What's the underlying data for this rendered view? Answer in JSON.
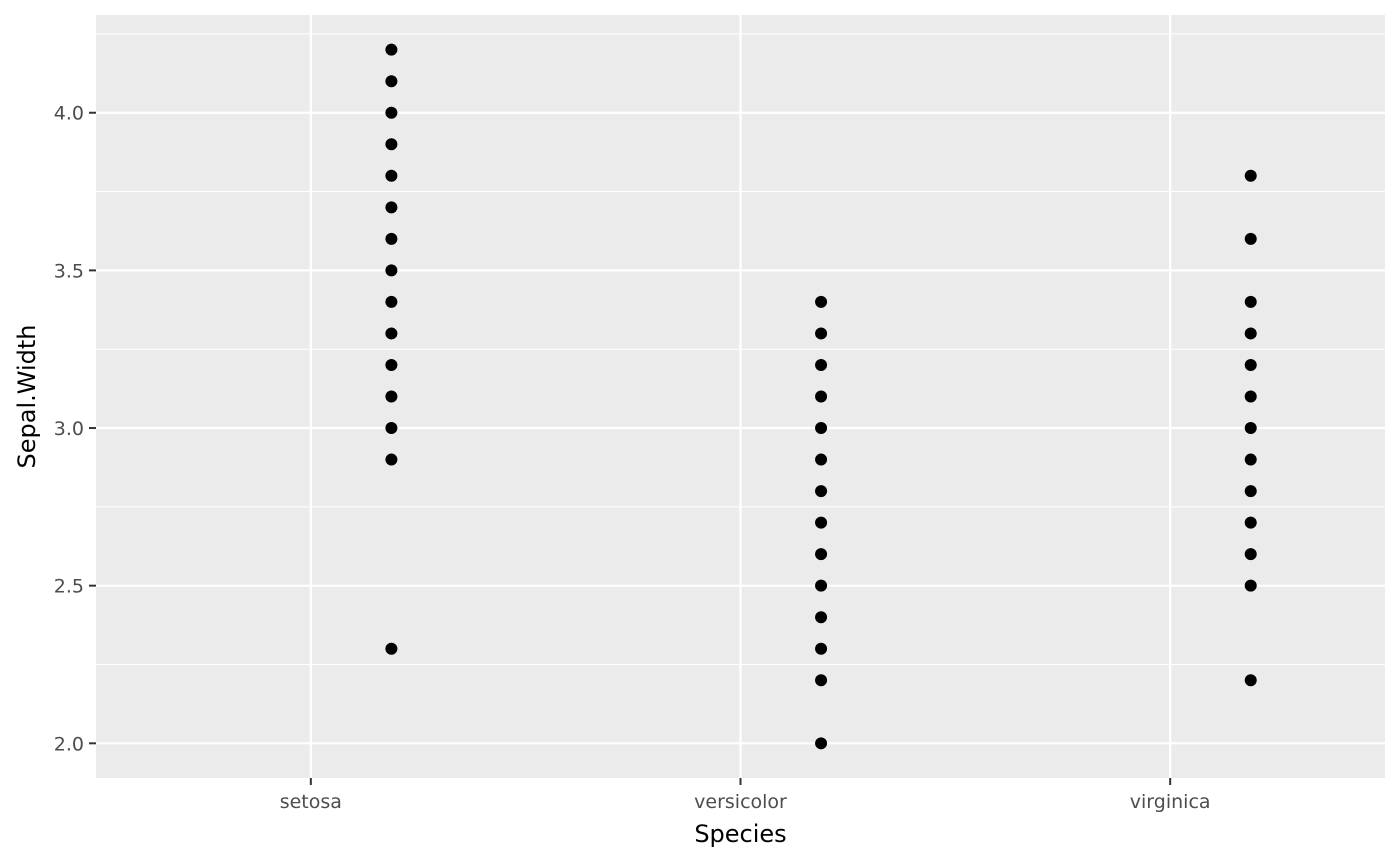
{
  "chart_data": {
    "type": "scatter",
    "title": "",
    "xlabel": "Species",
    "ylabel": "Sepal.Width",
    "categories": [
      "setosa",
      "versicolor",
      "virginica"
    ],
    "ylim": [
      1.89,
      4.31
    ],
    "y_ticks": [
      2.0,
      2.5,
      3.0,
      3.5,
      4.0
    ],
    "y_tick_labels": [
      "2.0",
      "2.5",
      "3.0",
      "3.5",
      "4.0"
    ],
    "grid": true,
    "legend": "none",
    "colors": {
      "panel_background": "#ebebeb",
      "grid_line": "#ffffff",
      "point": "#000000",
      "tick_text": "#4d4d4d",
      "title_text": "#000000",
      "tick_mark": "#333333"
    },
    "points": [
      {
        "category": "setosa",
        "y": 4.2
      },
      {
        "category": "setosa",
        "y": 4.1
      },
      {
        "category": "setosa",
        "y": 4.0
      },
      {
        "category": "setosa",
        "y": 3.9
      },
      {
        "category": "setosa",
        "y": 3.8
      },
      {
        "category": "setosa",
        "y": 3.7
      },
      {
        "category": "setosa",
        "y": 3.6
      },
      {
        "category": "setosa",
        "y": 3.5
      },
      {
        "category": "setosa",
        "y": 3.4
      },
      {
        "category": "setosa",
        "y": 3.3
      },
      {
        "category": "setosa",
        "y": 3.2
      },
      {
        "category": "setosa",
        "y": 3.1
      },
      {
        "category": "setosa",
        "y": 3.0
      },
      {
        "category": "setosa",
        "y": 2.9
      },
      {
        "category": "setosa",
        "y": 2.3
      },
      {
        "category": "versicolor",
        "y": 3.4
      },
      {
        "category": "versicolor",
        "y": 3.3
      },
      {
        "category": "versicolor",
        "y": 3.2
      },
      {
        "category": "versicolor",
        "y": 3.1
      },
      {
        "category": "versicolor",
        "y": 3.0
      },
      {
        "category": "versicolor",
        "y": 2.9
      },
      {
        "category": "versicolor",
        "y": 2.8
      },
      {
        "category": "versicolor",
        "y": 2.7
      },
      {
        "category": "versicolor",
        "y": 2.6
      },
      {
        "category": "versicolor",
        "y": 2.5
      },
      {
        "category": "versicolor",
        "y": 2.4
      },
      {
        "category": "versicolor",
        "y": 2.3
      },
      {
        "category": "versicolor",
        "y": 2.2
      },
      {
        "category": "versicolor",
        "y": 2.0
      },
      {
        "category": "virginica",
        "y": 3.8
      },
      {
        "category": "virginica",
        "y": 3.6
      },
      {
        "category": "virginica",
        "y": 3.4
      },
      {
        "category": "virginica",
        "y": 3.3
      },
      {
        "category": "virginica",
        "y": 3.2
      },
      {
        "category": "virginica",
        "y": 3.1
      },
      {
        "category": "virginica",
        "y": 3.0
      },
      {
        "category": "virginica",
        "y": 2.9
      },
      {
        "category": "virginica",
        "y": 2.8
      },
      {
        "category": "virginica",
        "y": 2.7
      },
      {
        "category": "virginica",
        "y": 2.6
      },
      {
        "category": "virginica",
        "y": 2.5
      },
      {
        "category": "virginica",
        "y": 2.2
      }
    ]
  }
}
